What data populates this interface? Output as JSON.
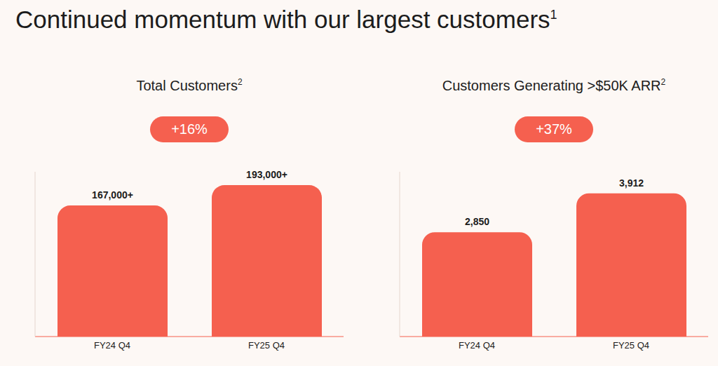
{
  "title": "Continued momentum with our largest customers",
  "title_note": "1",
  "chart_data": [
    {
      "type": "bar",
      "title": "Total Customers",
      "title_note": "2",
      "annotation": "+16%",
      "categories": [
        "FY24 Q4",
        "FY25 Q4"
      ],
      "values": [
        167000,
        193000
      ],
      "value_labels": [
        "167,000+",
        "193,000+"
      ],
      "data_labels": true,
      "color": "#f5604f",
      "ylim": [
        0,
        210000
      ],
      "grid": false,
      "tick_labels": "x"
    },
    {
      "type": "bar",
      "title": "Customers Generating >$50K ARR",
      "title_note": "2",
      "annotation": "+37%",
      "categories": [
        "FY24 Q4",
        "FY25 Q4"
      ],
      "values": [
        2850,
        3912
      ],
      "value_labels": [
        "2,850",
        "3,912"
      ],
      "data_labels": true,
      "color": "#f5604f",
      "ylim": [
        0,
        4500
      ],
      "grid": false,
      "tick_labels": "x"
    }
  ]
}
